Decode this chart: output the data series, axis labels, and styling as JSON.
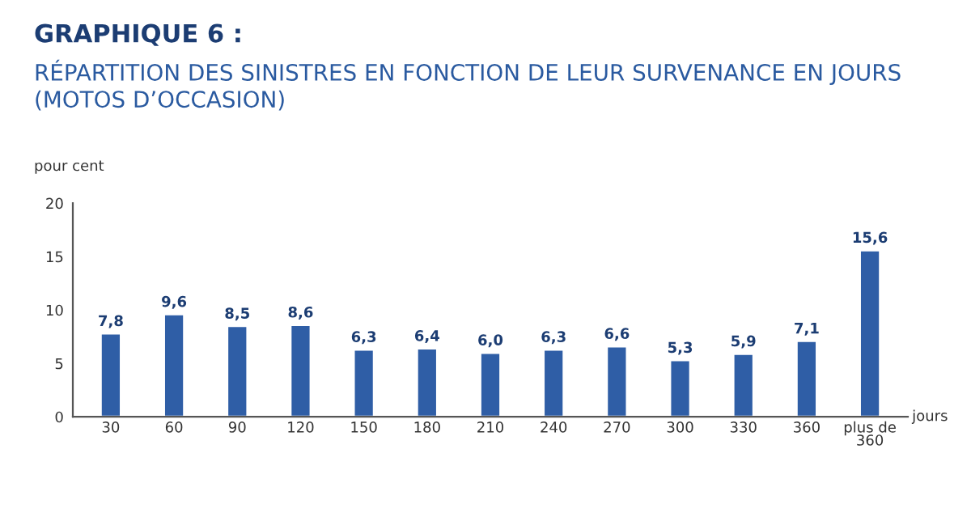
{
  "chart_data": {
    "type": "bar",
    "title": "GRAPHIQUE 6 :",
    "subtitle": "RÉPARTITION DES SINISTRES EN FONCTION DE LEUR SURVENANCE EN JOURS\n(MOTOS D’OCCASION)",
    "ylabel": "pour cent",
    "xlabel": "jours",
    "categories": [
      "30",
      "60",
      "90",
      "120",
      "150",
      "180",
      "210",
      "240",
      "270",
      "300",
      "330",
      "360",
      "plus de\n360"
    ],
    "values": [
      7.8,
      9.6,
      8.5,
      8.6,
      6.3,
      6.4,
      6.0,
      6.3,
      6.6,
      5.3,
      5.9,
      7.1,
      15.6
    ],
    "value_labels": [
      "7,8",
      "9,6",
      "8,5",
      "8,6",
      "6,3",
      "6,4",
      "6,0",
      "6,3",
      "6,6",
      "5,3",
      "5,9",
      "7,1",
      "15,6"
    ],
    "color": "#2f5ea6",
    "ylim": [
      0,
      20
    ],
    "yticks": [
      0,
      5,
      10,
      15,
      20
    ],
    "grid": false
  }
}
